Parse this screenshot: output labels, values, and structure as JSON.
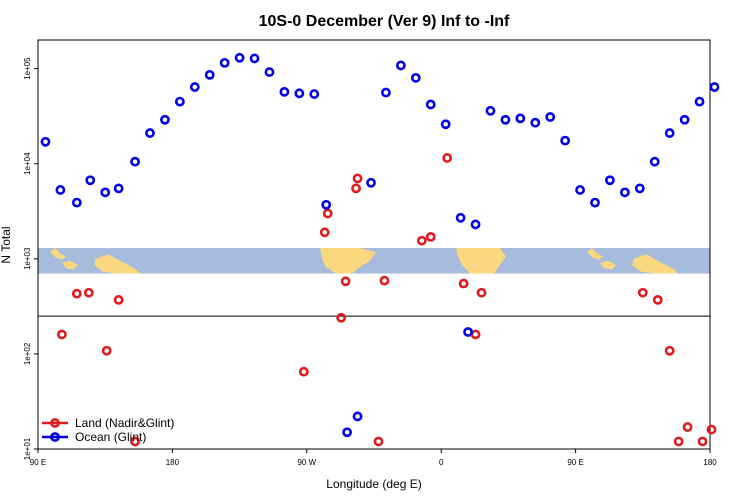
{
  "chart_data": {
    "type": "scatter",
    "title": "10S-0 December (Ver 9)   Inf to -Inf",
    "xlabel": "Longitude (deg E)",
    "ylabel": "N Total",
    "x_tick_labels": [
      "90 E",
      "180",
      "90 W",
      "0",
      "90 E",
      "180"
    ],
    "x_tick_positions": [
      90,
      180,
      270,
      360,
      450,
      540
    ],
    "xlim": [
      90,
      540
    ],
    "y_scale": "log",
    "ylim": [
      10,
      200000
    ],
    "y_tick_labels": [
      "1e+01",
      "1e+02",
      "1e+03",
      "1e+04",
      "1e+05"
    ],
    "y_tick_values": [
      10,
      100,
      1000,
      10000,
      100000
    ],
    "map_band": {
      "y_range": [
        700,
        1300
      ],
      "ocean_color": "#a7bcdc",
      "land_color": "#fbd77f"
    },
    "separator_y": 250,
    "legend": {
      "placement": "bottom-left",
      "entries": [
        {
          "label": "Land (Nadir&Glint)",
          "color": "#e31a1c"
        },
        {
          "label": "Ocean (Glint)",
          "color": "#0000e6"
        }
      ]
    },
    "series": [
      {
        "name": "Land (Nadir&Glint)",
        "color": "#e31a1c",
        "x": [
          106,
          116,
          124,
          144,
          136,
          155,
          268,
          282,
          284,
          293,
          296,
          303,
          304,
          318,
          322,
          347,
          353,
          364,
          375,
          383,
          387,
          495,
          505,
          513,
          519,
          525,
          535,
          541
        ],
        "y": [
          160,
          430,
          440,
          370,
          108,
          12,
          65,
          1900,
          3000,
          240,
          580,
          5500,
          7000,
          12,
          590,
          1550,
          1700,
          11500,
          550,
          160,
          440,
          440,
          370,
          108,
          12,
          17,
          12,
          16
        ]
      },
      {
        "name": "Ocean (Glint)",
        "color": "#0000e6",
        "x": [
          95,
          105,
          116,
          125,
          135,
          144,
          155,
          165,
          175,
          185,
          195,
          205,
          215,
          225,
          235,
          245,
          255,
          265,
          275,
          283,
          297,
          304,
          313,
          323,
          333,
          343,
          353,
          363,
          373,
          378,
          383,
          393,
          403,
          413,
          423,
          433,
          443,
          453,
          463,
          473,
          483,
          493,
          503,
          513,
          523,
          533,
          543
        ],
        "y": [
          17000,
          5300,
          3900,
          6700,
          5000,
          5500,
          10500,
          21000,
          29000,
          45000,
          64000,
          86000,
          115000,
          130000,
          128000,
          92000,
          57000,
          55000,
          54000,
          3700,
          15,
          22,
          6300,
          56000,
          108000,
          80000,
          42000,
          26000,
          2700,
          170,
          2300,
          36000,
          29000,
          30000,
          27000,
          31000,
          17500,
          5300,
          3900,
          6700,
          5000,
          5500,
          10500,
          21000,
          29000,
          45000,
          64000
        ]
      }
    ]
  }
}
